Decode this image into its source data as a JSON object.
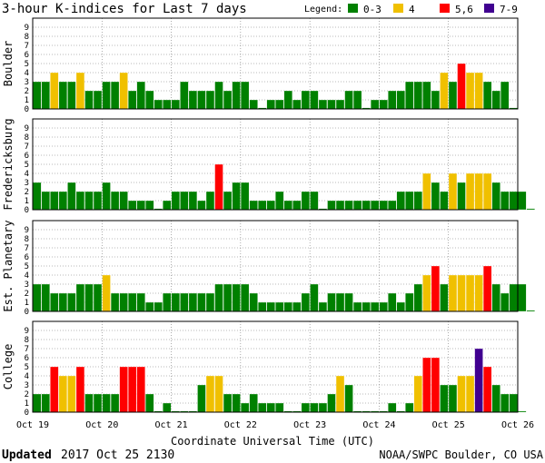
{
  "title": "3-hour K-indices for Last 7 days",
  "legend": {
    "label": "Legend:",
    "items": [
      {
        "label": "0-3",
        "color": "#008000"
      },
      {
        "label": "4",
        "color": "#f0c000"
      },
      {
        "label": "5,6",
        "color": "#ff0000"
      },
      {
        "label": "7-9",
        "color": "#400090"
      }
    ]
  },
  "footer": {
    "updated_label": "Updated",
    "updated_value": "2017 Oct 25 2130",
    "source": "NOAA/SWPC Boulder, CO USA"
  },
  "chart_data": {
    "type": "bar",
    "xlabel": "Coordinate Universal Time (UTC)",
    "x_ticks": [
      "Oct 19",
      "Oct 20",
      "Oct 21",
      "Oct 22",
      "Oct 23",
      "Oct 24",
      "Oct 25",
      "Oct 26"
    ],
    "y_ticks": [
      "0",
      "1",
      "2",
      "3",
      "4",
      "5",
      "6",
      "7",
      "8",
      "9"
    ],
    "ylim": [
      0,
      9
    ],
    "grid": true,
    "series": [
      {
        "name": "Boulder",
        "values": [
          3,
          3,
          4,
          3,
          3,
          4,
          2,
          2,
          3,
          3,
          4,
          2,
          3,
          2,
          1,
          1,
          1,
          3,
          2,
          2,
          2,
          3,
          2,
          3,
          3,
          1,
          0,
          1,
          1,
          2,
          1,
          2,
          2,
          1,
          1,
          1,
          2,
          2,
          0,
          1,
          1,
          2,
          2,
          3,
          3,
          3,
          2,
          4,
          3,
          5,
          4,
          4,
          3,
          2,
          3,
          0
        ]
      },
      {
        "name": "Fredericksburg",
        "values": [
          3,
          2,
          2,
          2,
          3,
          2,
          2,
          2,
          3,
          2,
          2,
          1,
          1,
          1,
          0,
          1,
          2,
          2,
          2,
          1,
          2,
          5,
          2,
          3,
          3,
          1,
          1,
          1,
          2,
          1,
          1,
          2,
          2,
          0,
          1,
          1,
          1,
          1,
          1,
          1,
          1,
          1,
          2,
          2,
          2,
          4,
          3,
          2,
          4,
          3,
          4,
          4,
          4,
          3,
          2,
          2,
          2,
          0
        ]
      },
      {
        "name": "Est. Planetary",
        "values": [
          3,
          3,
          2,
          2,
          2,
          3,
          3,
          3,
          4,
          2,
          2,
          2,
          2,
          1,
          1,
          2,
          2,
          2,
          2,
          2,
          2,
          3,
          3,
          3,
          3,
          2,
          1,
          1,
          1,
          1,
          1,
          2,
          3,
          1,
          2,
          2,
          2,
          1,
          1,
          1,
          1,
          2,
          1,
          2,
          3,
          4,
          5,
          3,
          4,
          4,
          4,
          4,
          5,
          3,
          2,
          3,
          3,
          0
        ]
      },
      {
        "name": "College",
        "values": [
          2,
          2,
          5,
          4,
          4,
          5,
          2,
          2,
          2,
          2,
          5,
          5,
          5,
          2,
          0,
          1,
          0,
          0,
          0,
          3,
          4,
          4,
          2,
          2,
          1,
          2,
          1,
          1,
          1,
          0,
          0,
          1,
          1,
          1,
          2,
          4,
          3,
          0,
          0,
          0,
          0,
          1,
          0,
          1,
          4,
          6,
          6,
          3,
          3,
          4,
          4,
          7,
          5,
          3,
          2,
          2,
          0
        ]
      }
    ]
  }
}
